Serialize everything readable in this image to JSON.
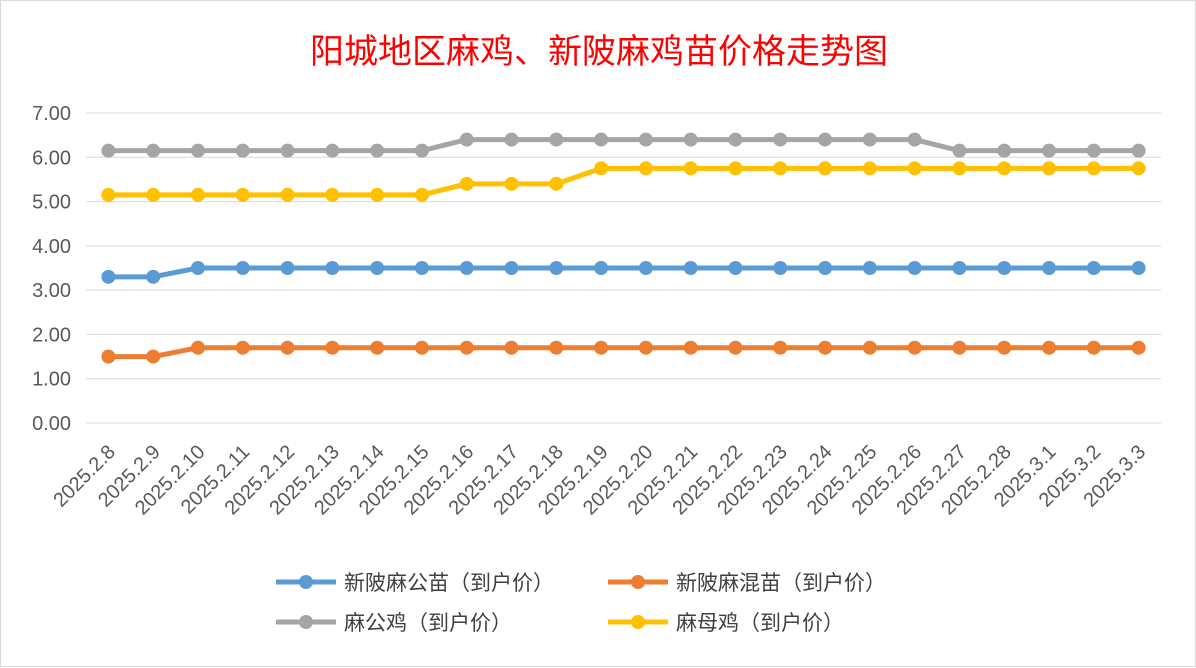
{
  "chart_data": {
    "type": "line",
    "title": "阳城地区麻鸡、新陂麻鸡苗价格走势图",
    "title_color": "#ff0000",
    "xlabel": "",
    "ylabel": "",
    "ylim": [
      0,
      7
    ],
    "y_ticks": [
      "0.00",
      "1.00",
      "2.00",
      "3.00",
      "4.00",
      "5.00",
      "6.00",
      "7.00"
    ],
    "grid": true,
    "legend_position": "bottom",
    "categories": [
      "2025.2.8",
      "2025.2.9",
      "2025.2.10",
      "2025.2.11",
      "2025.2.12",
      "2025.2.13",
      "2025.2.14",
      "2025.2.15",
      "2025.2.16",
      "2025.2.17",
      "2025.2.18",
      "2025.2.19",
      "2025.2.20",
      "2025.2.21",
      "2025.2.22",
      "2025.2.23",
      "2025.2.24",
      "2025.2.25",
      "2025.2.26",
      "2025.2.27",
      "2025.2.28",
      "2025.3.1",
      "2025.3.2",
      "2025.3.3"
    ],
    "series": [
      {
        "name": "新陂麻公苗（到户价）",
        "color": "#5b9bd5",
        "values": [
          3.3,
          3.3,
          3.5,
          3.5,
          3.5,
          3.5,
          3.5,
          3.5,
          3.5,
          3.5,
          3.5,
          3.5,
          3.5,
          3.5,
          3.5,
          3.5,
          3.5,
          3.5,
          3.5,
          3.5,
          3.5,
          3.5,
          3.5,
          3.5
        ]
      },
      {
        "name": "新陂麻混苗（到户价）",
        "color": "#ed7d31",
        "values": [
          1.5,
          1.5,
          1.7,
          1.7,
          1.7,
          1.7,
          1.7,
          1.7,
          1.7,
          1.7,
          1.7,
          1.7,
          1.7,
          1.7,
          1.7,
          1.7,
          1.7,
          1.7,
          1.7,
          1.7,
          1.7,
          1.7,
          1.7,
          1.7
        ]
      },
      {
        "name": "麻公鸡（到户价）",
        "color": "#a5a5a5",
        "values": [
          6.15,
          6.15,
          6.15,
          6.15,
          6.15,
          6.15,
          6.15,
          6.15,
          6.4,
          6.4,
          6.4,
          6.4,
          6.4,
          6.4,
          6.4,
          6.4,
          6.4,
          6.4,
          6.4,
          6.15,
          6.15,
          6.15,
          6.15,
          6.15
        ]
      },
      {
        "name": "麻母鸡（到户价）",
        "color": "#ffc000",
        "values": [
          5.15,
          5.15,
          5.15,
          5.15,
          5.15,
          5.15,
          5.15,
          5.15,
          5.4,
          5.4,
          5.4,
          5.75,
          5.75,
          5.75,
          5.75,
          5.75,
          5.75,
          5.75,
          5.75,
          5.75,
          5.75,
          5.75,
          5.75,
          5.75
        ]
      }
    ]
  }
}
